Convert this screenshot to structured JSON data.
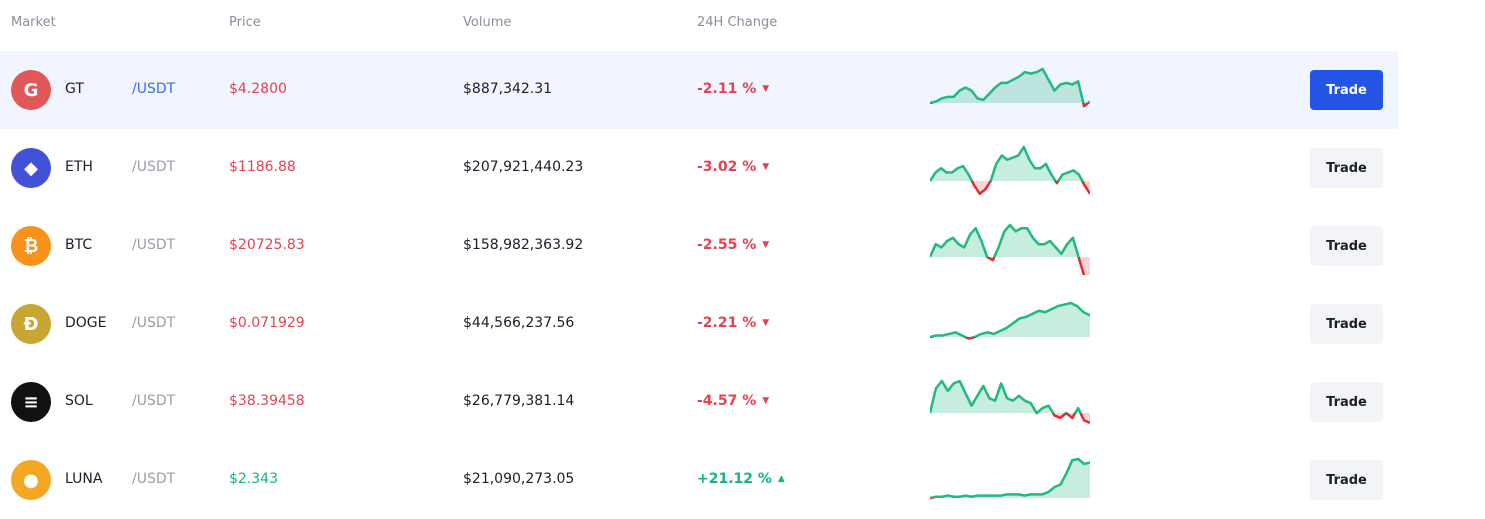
{
  "header": {
    "market": "Market",
    "price": "Price",
    "volume": "Volume",
    "change": "24H Change"
  },
  "colors": {
    "down": "#e8414f",
    "up": "#14b77a",
    "accent": "#2354e6",
    "spark_up": "#20b97e",
    "spark_down": "#e52b2b"
  },
  "rows": [
    {
      "symbol": "GT",
      "quote": "/USDT",
      "price": "$4.2800",
      "volume": "$887,342.31",
      "change": "-2.11 %",
      "direction": "down",
      "trade": "Trade",
      "icon": "gatetoken-icon",
      "icon_color": "#e05858",
      "active": true,
      "spark": [
        0,
        1,
        3,
        4,
        4,
        8,
        10,
        8,
        3,
        2,
        6,
        10,
        13,
        13,
        15,
        17,
        20,
        19,
        20,
        22,
        15,
        8,
        12,
        13,
        12,
        14,
        -2,
        1
      ]
    },
    {
      "symbol": "ETH",
      "quote": "/USDT",
      "price": "$1186.88",
      "volume": "$207,921,440.23",
      "change": "-3.02 %",
      "direction": "down",
      "trade": "Trade",
      "icon": "ethereum-icon",
      "icon_color": "#4152d9",
      "spark": [
        0,
        4,
        6,
        4,
        4,
        6,
        7,
        3,
        -2,
        -6,
        -4,
        0,
        8,
        12,
        10,
        11,
        12,
        16,
        10,
        6,
        6,
        8,
        3,
        -1,
        3,
        4,
        5,
        3,
        -2,
        -6
      ]
    },
    {
      "symbol": "BTC",
      "quote": "/USDT",
      "price": "$20725.83",
      "volume": "$158,982,363.92",
      "change": "-2.55 %",
      "direction": "down",
      "trade": "Trade",
      "icon": "bitcoin-icon",
      "icon_color": "#f7931a",
      "spark": [
        0,
        4,
        3,
        5,
        6,
        4,
        3,
        7,
        9,
        5,
        0,
        -1,
        3,
        8,
        10,
        8,
        9,
        9,
        6,
        4,
        4,
        5,
        3,
        1,
        4,
        6,
        0,
        -6,
        -6
      ]
    },
    {
      "symbol": "DOGE",
      "quote": "/USDT",
      "price": "$0.071929",
      "volume": "$44,566,237.56",
      "change": "-2.21 %",
      "direction": "down",
      "trade": "Trade",
      "icon": "dogecoin-icon",
      "icon_color": "#c9a633",
      "spark": [
        0,
        1,
        1,
        2,
        3,
        1,
        -1,
        0,
        2,
        3,
        2,
        4,
        6,
        9,
        12,
        13,
        15,
        17,
        16,
        18,
        20,
        21,
        22,
        20,
        16,
        14
      ]
    },
    {
      "symbol": "SOL",
      "quote": "/USDT",
      "price": "$38.39458",
      "volume": "$26,779,381.14",
      "change": "-4.57 %",
      "direction": "down",
      "trade": "Trade",
      "icon": "solana-icon",
      "icon_color": "#111111",
      "spark": [
        0,
        10,
        13,
        9,
        12,
        13,
        8,
        3,
        7,
        11,
        6,
        5,
        12,
        6,
        5,
        7,
        5,
        4,
        0,
        2,
        3,
        -1,
        -2,
        0,
        -2,
        2,
        -3,
        -4
      ]
    },
    {
      "symbol": "LUNA",
      "quote": "/USDT",
      "price": "$2.343",
      "volume": "$21,090,273.05",
      "change": "+21.12 %",
      "direction": "up",
      "trade": "Trade",
      "icon": "terra-luna-icon",
      "icon_color": "#f5a623",
      "spark": [
        0,
        1,
        1,
        2,
        1,
        1,
        2,
        1,
        2,
        2,
        2,
        2,
        2,
        3,
        3,
        3,
        2,
        3,
        3,
        3,
        5,
        9,
        11,
        20,
        31,
        32,
        28,
        29
      ]
    }
  ]
}
